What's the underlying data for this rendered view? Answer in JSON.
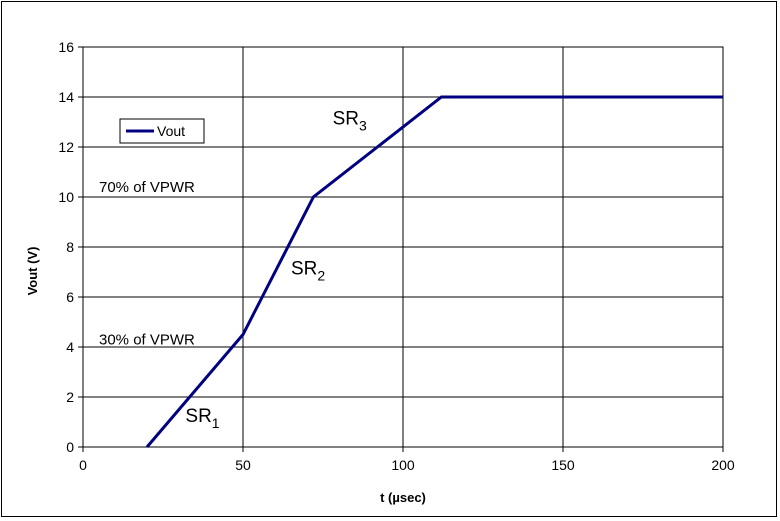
{
  "chart_data": {
    "type": "line",
    "xlabel": "t (µsec)",
    "ylabel": "Vout (V)",
    "xlim": [
      0,
      200
    ],
    "ylim": [
      0,
      16
    ],
    "x_ticks": [
      0,
      50,
      100,
      150,
      200
    ],
    "y_ticks": [
      0,
      2,
      4,
      6,
      8,
      10,
      12,
      14,
      16
    ],
    "grid": true,
    "legend_position": "upper-left",
    "series": [
      {
        "name": "Vout",
        "color": "#000080",
        "x": [
          20,
          50,
          72,
          112,
          200
        ],
        "y": [
          0,
          4.5,
          10,
          14,
          14
        ]
      }
    ],
    "annotations": [
      {
        "id": "pct70",
        "text": "70% of VPWR",
        "x": 5,
        "y": 10.2,
        "size": 15
      },
      {
        "id": "pct30",
        "text": "30% of VPWR",
        "x": 5,
        "y": 4.1,
        "size": 15
      },
      {
        "id": "sr1",
        "text": "SR",
        "sub": "1",
        "x": 32,
        "y": 1.0,
        "size": 19
      },
      {
        "id": "sr2",
        "text": "SR",
        "sub": "2",
        "x": 65,
        "y": 6.9,
        "size": 19
      },
      {
        "id": "sr3",
        "text": "SR",
        "sub": "3",
        "x": 78,
        "y": 12.9,
        "size": 19
      }
    ]
  }
}
